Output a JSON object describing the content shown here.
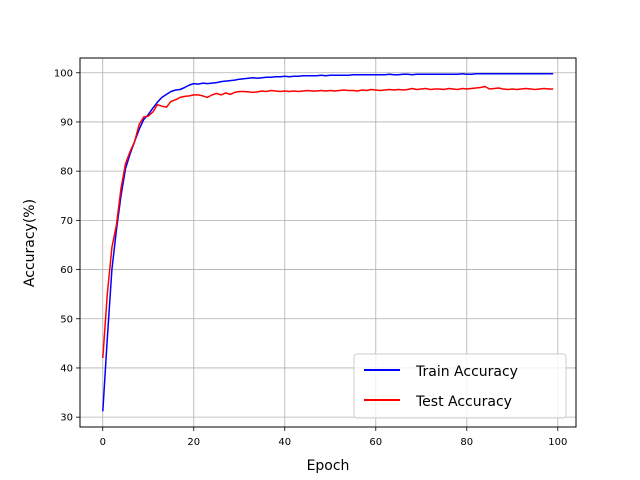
{
  "chart_data": {
    "type": "line",
    "title": "",
    "xlabel": "Epoch",
    "ylabel": "Accuracy(%)",
    "xlim": [
      -5,
      104
    ],
    "ylim": [
      28,
      103
    ],
    "xticks": [
      0,
      20,
      40,
      60,
      80,
      100
    ],
    "yticks": [
      30,
      40,
      50,
      60,
      70,
      80,
      90,
      100
    ],
    "grid": true,
    "legend_position": "lower-right",
    "series": [
      {
        "name": "Train Accuracy",
        "color": "#0000ff",
        "x": [
          0,
          1,
          2,
          3,
          4,
          5,
          6,
          7,
          8,
          9,
          10,
          11,
          12,
          13,
          14,
          15,
          16,
          17,
          18,
          19,
          20,
          21,
          22,
          23,
          24,
          25,
          26,
          27,
          28,
          29,
          30,
          31,
          32,
          33,
          34,
          35,
          36,
          37,
          38,
          39,
          40,
          41,
          42,
          43,
          44,
          45,
          46,
          47,
          48,
          49,
          50,
          51,
          52,
          53,
          54,
          55,
          56,
          57,
          58,
          59,
          60,
          61,
          62,
          63,
          64,
          65,
          66,
          67,
          68,
          69,
          70,
          71,
          72,
          73,
          74,
          75,
          76,
          77,
          78,
          79,
          80,
          81,
          82,
          83,
          84,
          85,
          86,
          87,
          88,
          89,
          90,
          91,
          92,
          93,
          94,
          95,
          96,
          97,
          98,
          99
        ],
        "values": [
          31.2,
          46.0,
          60.0,
          68.0,
          75.0,
          80.5,
          83.5,
          86.0,
          88.5,
          90.5,
          91.5,
          92.8,
          94.0,
          95.0,
          95.6,
          96.2,
          96.5,
          96.6,
          97.0,
          97.5,
          97.8,
          97.7,
          97.9,
          97.8,
          97.9,
          98.0,
          98.2,
          98.3,
          98.4,
          98.5,
          98.7,
          98.8,
          98.9,
          99.0,
          98.9,
          99.0,
          99.1,
          99.1,
          99.2,
          99.2,
          99.3,
          99.2,
          99.3,
          99.3,
          99.4,
          99.4,
          99.4,
          99.4,
          99.5,
          99.4,
          99.5,
          99.5,
          99.5,
          99.5,
          99.5,
          99.6,
          99.6,
          99.6,
          99.6,
          99.6,
          99.6,
          99.6,
          99.6,
          99.7,
          99.6,
          99.6,
          99.7,
          99.7,
          99.6,
          99.7,
          99.7,
          99.7,
          99.7,
          99.7,
          99.7,
          99.7,
          99.7,
          99.7,
          99.7,
          99.8,
          99.7,
          99.7,
          99.8,
          99.8,
          99.8,
          99.8,
          99.8,
          99.8,
          99.8,
          99.8,
          99.8,
          99.8,
          99.8,
          99.8,
          99.8,
          99.8,
          99.8,
          99.8,
          99.8,
          99.8
        ]
      },
      {
        "name": "Test Accuracy",
        "color": "#ff0000",
        "x": [
          0,
          1,
          2,
          3,
          4,
          5,
          6,
          7,
          8,
          9,
          10,
          11,
          12,
          13,
          14,
          15,
          16,
          17,
          18,
          19,
          20,
          21,
          22,
          23,
          24,
          25,
          26,
          27,
          28,
          29,
          30,
          31,
          32,
          33,
          34,
          35,
          36,
          37,
          38,
          39,
          40,
          41,
          42,
          43,
          44,
          45,
          46,
          47,
          48,
          49,
          50,
          51,
          52,
          53,
          54,
          55,
          56,
          57,
          58,
          59,
          60,
          61,
          62,
          63,
          64,
          65,
          66,
          67,
          68,
          69,
          70,
          71,
          72,
          73,
          74,
          75,
          76,
          77,
          78,
          79,
          80,
          81,
          82,
          83,
          84,
          85,
          86,
          87,
          88,
          89,
          90,
          91,
          92,
          93,
          94,
          95,
          96,
          97,
          98,
          99
        ],
        "values": [
          42.0,
          55.0,
          64.5,
          69.0,
          76.5,
          81.5,
          84.0,
          86.0,
          89.5,
          91.0,
          91.2,
          92.0,
          93.5,
          93.2,
          93.0,
          94.2,
          94.5,
          95.0,
          95.2,
          95.3,
          95.5,
          95.5,
          95.3,
          95.0,
          95.5,
          95.8,
          95.5,
          95.9,
          95.6,
          96.0,
          96.2,
          96.2,
          96.1,
          96.0,
          96.1,
          96.3,
          96.2,
          96.4,
          96.3,
          96.2,
          96.3,
          96.2,
          96.3,
          96.2,
          96.3,
          96.4,
          96.3,
          96.3,
          96.4,
          96.3,
          96.4,
          96.3,
          96.4,
          96.5,
          96.4,
          96.4,
          96.3,
          96.5,
          96.4,
          96.6,
          96.5,
          96.4,
          96.5,
          96.6,
          96.5,
          96.6,
          96.5,
          96.6,
          96.8,
          96.6,
          96.7,
          96.8,
          96.6,
          96.7,
          96.7,
          96.6,
          96.8,
          96.7,
          96.6,
          96.8,
          96.7,
          96.8,
          96.9,
          97.0,
          97.2,
          96.7,
          96.8,
          96.9,
          96.7,
          96.6,
          96.7,
          96.6,
          96.7,
          96.8,
          96.7,
          96.6,
          96.7,
          96.8,
          96.7,
          96.7
        ]
      }
    ]
  }
}
